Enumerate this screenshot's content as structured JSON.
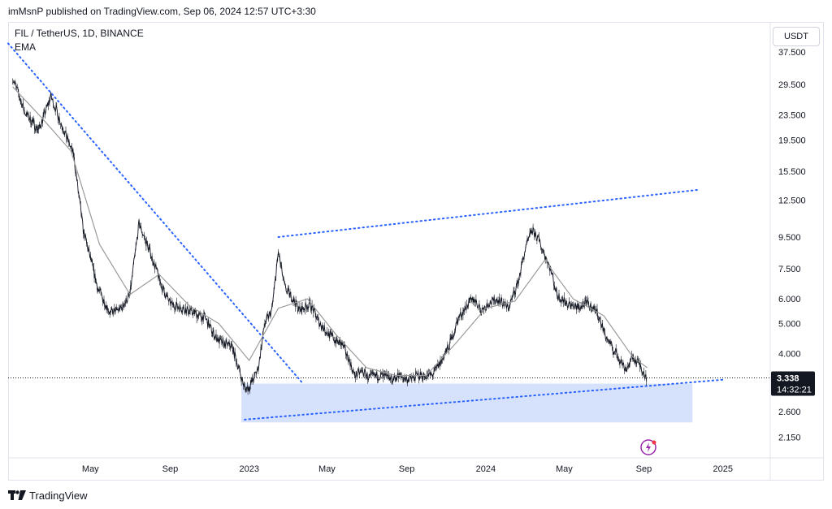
{
  "header": {
    "published": "imMsnP published on TradingView.com, Sep 06, 2024 12:57 UTC+3:30"
  },
  "legend": {
    "symbol": "FIL / TetherUS, 1D, BINANCE",
    "indicator": "EMA"
  },
  "currency_button": "USDT",
  "footer": {
    "brand": "TradingView"
  },
  "colors": {
    "candles": "#131722",
    "ema": "#9a9a9a",
    "trendline": "#2962ff",
    "zone": "#d6e1fc",
    "price_line": "#131722"
  },
  "chart_data": {
    "type": "line",
    "title": "FIL / TetherUS, 1D, BINANCE",
    "scale": "log",
    "ylim": [
      1.8,
      41
    ],
    "y_ticks": [
      "37.500",
      "29.500",
      "23.500",
      "19.500",
      "15.500",
      "12.500",
      "9.500",
      "7.500",
      "6.000",
      "5.000",
      "4.000",
      "2.600",
      "2.150"
    ],
    "x_ticks": [
      "May",
      "Sep",
      "2023",
      "May",
      "Sep",
      "2024",
      "May",
      "Sep",
      "2025"
    ],
    "last_price": "3.338",
    "countdown": "14:32:21",
    "series": [
      {
        "name": "FIL / TetherUS",
        "x": [
          "2022-01-01",
          "2022-01-20",
          "2022-02-10",
          "2022-03-01",
          "2022-03-25",
          "2022-04-05",
          "2022-04-20",
          "2022-05-05",
          "2022-05-12",
          "2022-06-01",
          "2022-06-18",
          "2022-07-01",
          "2022-07-15",
          "2022-08-01",
          "2022-08-10",
          "2022-08-20",
          "2022-09-01",
          "2022-09-20",
          "2022-10-10",
          "2022-10-25",
          "2022-11-08",
          "2022-11-20",
          "2022-12-05",
          "2022-12-25",
          "2023-01-01",
          "2023-01-15",
          "2023-01-25",
          "2023-02-05",
          "2023-02-15",
          "2023-02-25",
          "2023-03-10",
          "2023-03-20",
          "2023-04-05",
          "2023-04-20",
          "2023-05-05",
          "2023-05-15",
          "2023-05-25",
          "2023-06-05",
          "2023-06-12",
          "2023-06-25",
          "2023-07-05",
          "2023-07-20",
          "2023-08-10",
          "2023-08-20",
          "2023-09-01",
          "2023-09-20",
          "2023-10-10",
          "2023-10-25",
          "2023-11-05",
          "2023-11-20",
          "2023-12-05",
          "2023-12-15",
          "2023-12-25",
          "2024-01-05",
          "2024-01-20",
          "2024-02-05",
          "2024-02-20",
          "2024-03-01",
          "2024-03-12",
          "2024-03-20",
          "2024-03-28",
          "2024-04-10",
          "2024-04-20",
          "2024-05-01",
          "2024-05-20",
          "2024-06-05",
          "2024-06-20",
          "2024-07-05",
          "2024-07-20",
          "2024-08-05",
          "2024-08-15",
          "2024-08-25",
          "2024-09-06"
        ],
        "values": [
          31,
          24,
          21,
          27,
          20,
          17.5,
          10,
          7.5,
          6.5,
          5.4,
          5.6,
          6.2,
          10.5,
          8.5,
          7.5,
          6.5,
          5.8,
          5.6,
          5.4,
          5.2,
          4.6,
          4.3,
          4.25,
          3.1,
          3.1,
          3.6,
          5.0,
          5.5,
          8.5,
          6.5,
          6.0,
          5.5,
          5.8,
          5.0,
          4.6,
          4.4,
          4.25,
          3.8,
          3.4,
          3.5,
          3.35,
          3.4,
          3.3,
          3.4,
          3.3,
          3.4,
          3.4,
          3.8,
          4.2,
          5.2,
          5.8,
          6.0,
          5.5,
          5.8,
          6.0,
          5.6,
          6.8,
          8.5,
          10.0,
          9.5,
          8.8,
          7.5,
          6.2,
          5.9,
          5.6,
          5.8,
          5.5,
          4.5,
          4.0,
          3.55,
          3.9,
          3.7,
          3.338
        ]
      },
      {
        "name": "EMA",
        "x": [
          "2022-01-01",
          "2022-02-15",
          "2022-04-01",
          "2022-05-15",
          "2022-07-01",
          "2022-08-15",
          "2022-10-01",
          "2022-11-15",
          "2023-01-01",
          "2023-02-15",
          "2023-04-01",
          "2023-05-15",
          "2023-07-01",
          "2023-08-15",
          "2023-10-01",
          "2023-11-15",
          "2024-01-01",
          "2024-02-15",
          "2024-04-01",
          "2024-05-15",
          "2024-07-01",
          "2024-08-15",
          "2024-09-06"
        ],
        "values": [
          29,
          23,
          18,
          9.0,
          6.2,
          7.2,
          5.7,
          5.0,
          3.8,
          5.6,
          6.0,
          4.6,
          3.6,
          3.4,
          3.4,
          4.3,
          5.6,
          5.9,
          8.0,
          6.0,
          5.3,
          3.9,
          3.6
        ]
      }
    ],
    "annotations": {
      "descending_trendline": {
        "from": [
          "2021-12-25",
          40
        ],
        "to": [
          "2023-03-25",
          3.2
        ]
      },
      "resistance_trendline": {
        "from": [
          "2023-02-15",
          9.5
        ],
        "to": [
          "2024-11-25",
          13.5
        ]
      },
      "support_trendline": {
        "from": [
          "2022-12-25",
          2.45
        ],
        "to": [
          "2025-01-05",
          3.3
        ]
      },
      "demand_zone": {
        "x": [
          "2022-12-20",
          "2024-11-15"
        ],
        "y": [
          2.4,
          3.2
        ]
      }
    }
  }
}
